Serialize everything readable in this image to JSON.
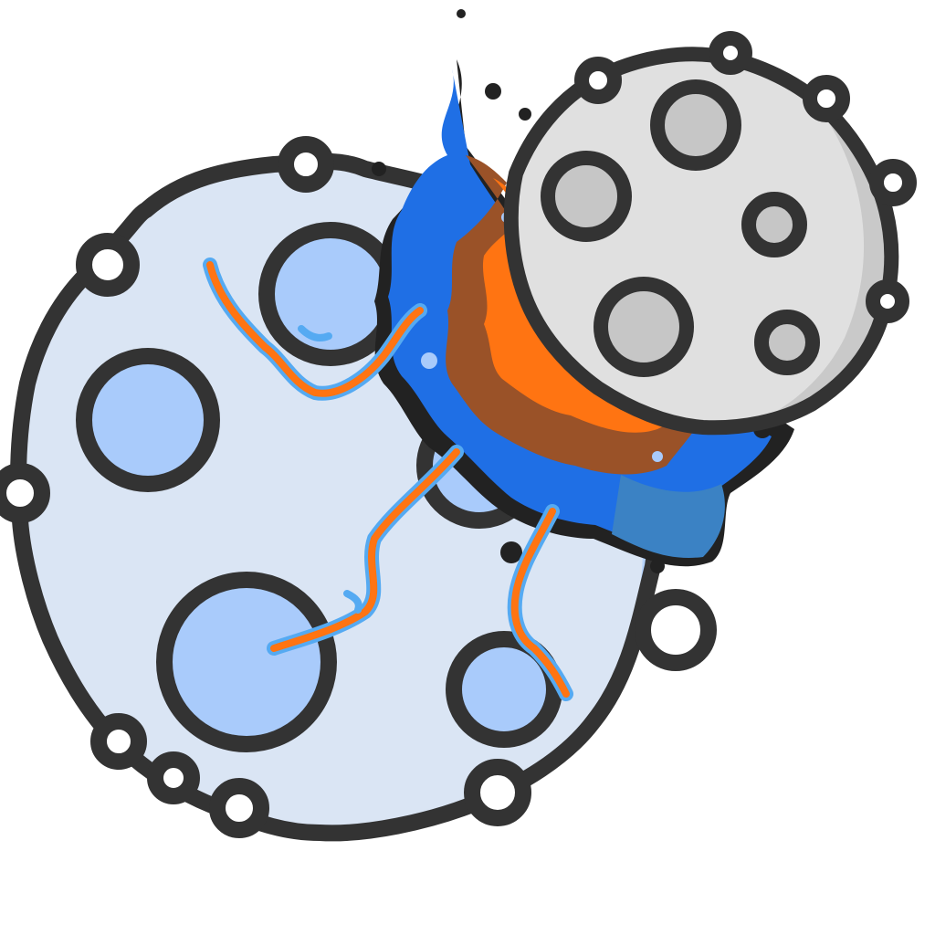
{
  "illustration": {
    "subject": "moon-collision",
    "outline_color": "#333333",
    "large_moon": {
      "fill_color": "#dae5f4",
      "shade_color": "#b6d3fb",
      "crater_color": "#a9cbfb"
    },
    "small_moon": {
      "fill_color": "#e0e0e0",
      "shade_color": "#c9c9c9",
      "crater_color": "#c6c6c6"
    },
    "impact_colors": {
      "blue": "#1f6fe5",
      "steel_blue": "#3b82c4",
      "brown": "#9a5228",
      "orange": "#ff7412",
      "light_blue": "#55aaf2"
    }
  }
}
